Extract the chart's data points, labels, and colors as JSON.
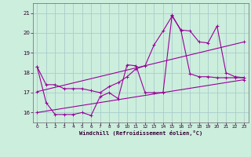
{
  "xlabel": "Windchill (Refroidissement éolien,°C)",
  "bg_color": "#cceedd",
  "grid_color": "#aacccc",
  "line_color": "#990099",
  "xlim": [
    -0.5,
    23.5
  ],
  "ylim": [
    15.5,
    21.5
  ],
  "yticks": [
    16,
    17,
    18,
    19,
    20,
    21
  ],
  "xticks": [
    0,
    1,
    2,
    3,
    4,
    5,
    6,
    7,
    8,
    9,
    10,
    11,
    12,
    13,
    14,
    15,
    16,
    17,
    18,
    19,
    20,
    21,
    22,
    23
  ],
  "series1_x": [
    0,
    1,
    2,
    3,
    4,
    5,
    6,
    7,
    8,
    9,
    10,
    11,
    12,
    13,
    14,
    15,
    16,
    17,
    18,
    19,
    20,
    21,
    22,
    23
  ],
  "series1_y": [
    18.3,
    17.4,
    17.4,
    17.2,
    17.2,
    17.2,
    17.1,
    17.0,
    17.3,
    17.5,
    17.8,
    18.2,
    18.35,
    19.4,
    20.1,
    20.85,
    20.15,
    20.1,
    19.55,
    19.5,
    20.35,
    18.0,
    17.8,
    17.75
  ],
  "series2_x": [
    0,
    1,
    2,
    3,
    4,
    5,
    6,
    7,
    8,
    9,
    10,
    11,
    12,
    13,
    14,
    15,
    16,
    17,
    18,
    19,
    20,
    21,
    22,
    23
  ],
  "series2_y": [
    18.3,
    16.5,
    15.9,
    15.9,
    15.9,
    16.0,
    15.85,
    16.8,
    17.0,
    16.7,
    18.4,
    18.35,
    17.0,
    17.0,
    17.0,
    20.9,
    20.1,
    17.95,
    17.8,
    17.8,
    17.75,
    17.75,
    17.75,
    17.75
  ],
  "series3_x": [
    0,
    23
  ],
  "series3_y": [
    16.0,
    17.65
  ],
  "series4_x": [
    0,
    23
  ],
  "series4_y": [
    17.05,
    19.55
  ]
}
